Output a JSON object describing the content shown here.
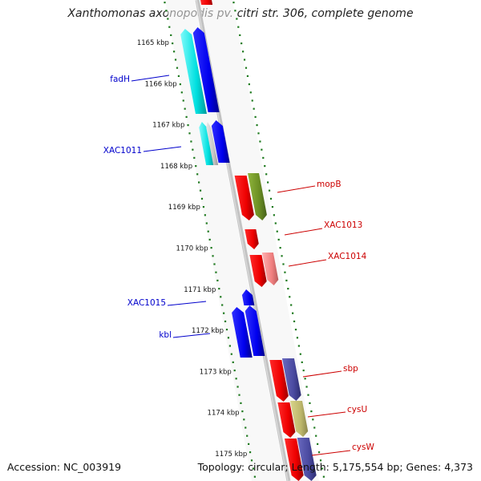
{
  "title": "Xanthomonas axonopodis pv. citri str. 306, complete genome",
  "footer": {
    "accession": "Accession: NC_003919",
    "summary": "Topology: circular; Length: 5,175,554 bp; Genes: 4,373"
  },
  "kbp_labels": [
    {
      "kbp": 1165,
      "label": "1165 kbp"
    },
    {
      "kbp": 1166,
      "label": "1166 kbp"
    },
    {
      "kbp": 1167,
      "label": "1167 kbp"
    },
    {
      "kbp": 1168,
      "label": "1168 kbp"
    },
    {
      "kbp": 1169,
      "label": "1169 kbp"
    },
    {
      "kbp": 1170,
      "label": "1170 kbp"
    },
    {
      "kbp": 1171,
      "label": "1171 kbp"
    },
    {
      "kbp": 1172,
      "label": "1172 kbp"
    },
    {
      "kbp": 1173,
      "label": "1173 kbp"
    },
    {
      "kbp": 1174,
      "label": "1174 kbp"
    },
    {
      "kbp": 1175,
      "label": "1175 kbp"
    }
  ],
  "gene_labels": [
    {
      "name": "fadH",
      "strand": "reverse",
      "color": "#0000cc"
    },
    {
      "name": "XAC1011",
      "strand": "reverse",
      "color": "#0000cc"
    },
    {
      "name": "mopB",
      "strand": "forward",
      "color": "#cc0000"
    },
    {
      "name": "XAC1013",
      "strand": "forward",
      "color": "#cc0000"
    },
    {
      "name": "XAC1014",
      "strand": "forward",
      "color": "#cc0000"
    },
    {
      "name": "XAC1015",
      "strand": "reverse",
      "color": "#0000cc"
    },
    {
      "name": "kbl",
      "strand": "reverse",
      "color": "#0000cc"
    },
    {
      "name": "sbp",
      "strand": "forward",
      "color": "#cc0000"
    },
    {
      "name": "cysU",
      "strand": "forward",
      "color": "#cc0000"
    },
    {
      "name": "cysW",
      "strand": "forward",
      "color": "#cc0000"
    }
  ],
  "colors": {
    "backbone": "#8a8a8a",
    "dots": "#1f7a1f",
    "forward_gene": "#ff0000",
    "reverse_gene": "#0000ee",
    "cog_cyan": "#00e5e5",
    "cog_olive": "#6b8e23",
    "cog_pink": "#f08080",
    "cog_khaki": "#bdb76b",
    "cog_slate": "#4a4aa0"
  }
}
